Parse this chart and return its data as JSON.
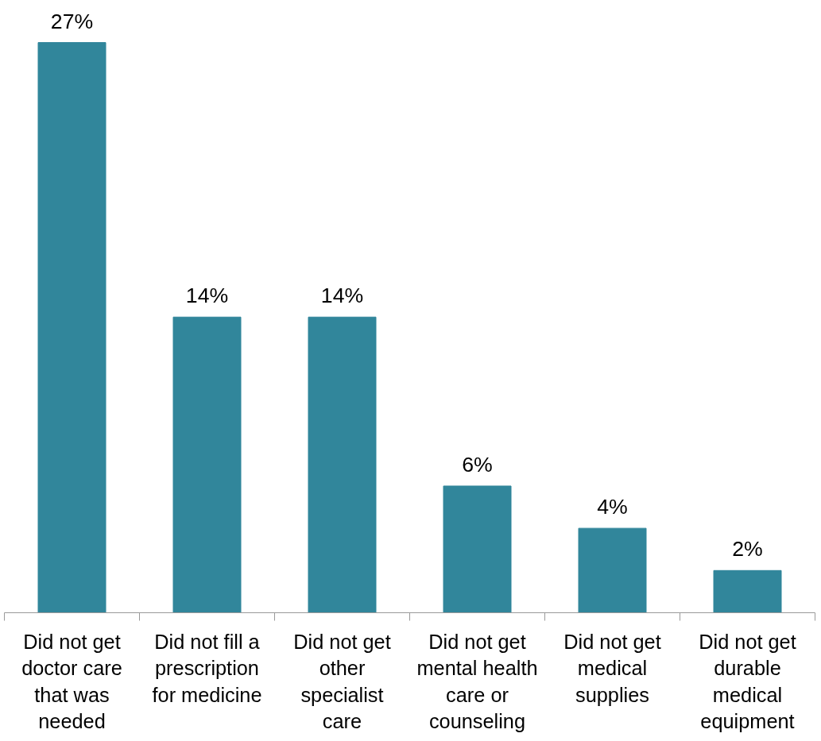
{
  "chart_data": {
    "type": "bar",
    "categories": [
      "Did not get doctor care that was needed",
      "Did not fill a prescription for medicine",
      "Did not get other specialist care",
      "Did not get mental health care or counseling",
      "Did not get medical supplies",
      "Did not get durable medical equipment"
    ],
    "values": [
      27,
      14,
      14,
      6,
      4,
      2
    ],
    "value_labels": [
      "27%",
      "14%",
      "14%",
      "6%",
      "4%",
      "2%"
    ],
    "color": "#31869b"
  }
}
